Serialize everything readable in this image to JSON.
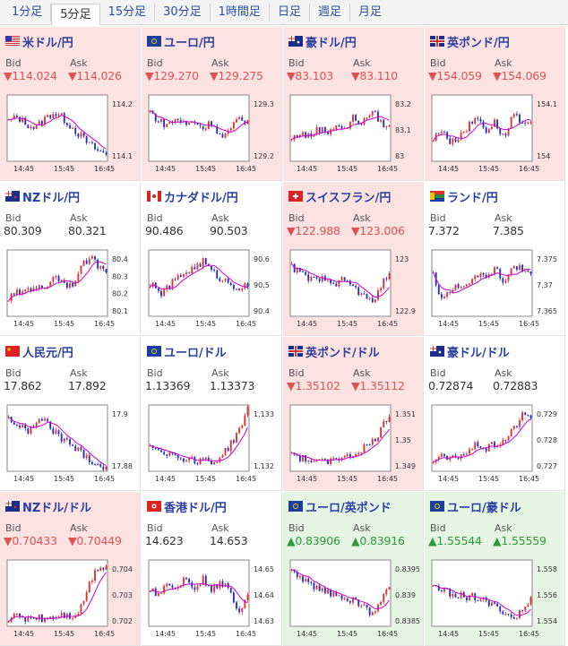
{
  "tabs": [
    {
      "label": "1分足",
      "active": false
    },
    {
      "label": "5分足",
      "active": true
    },
    {
      "label": "15分足",
      "active": false
    },
    {
      "label": "30分足",
      "active": false
    },
    {
      "label": "1時間足",
      "active": false
    },
    {
      "label": "日足",
      "active": false
    },
    {
      "label": "週足",
      "active": false
    },
    {
      "label": "月足",
      "active": false
    }
  ],
  "colors": {
    "down_bg": "#fde2e2",
    "up_bg": "#e6f5e3",
    "down_text": "#e05252",
    "up_text": "#2b9a3a",
    "bull_candle": "#e03030",
    "bear_candle": "#2030c0",
    "ma_line": "#cc00cc",
    "title": "#2a3fa0"
  },
  "labels": {
    "bid": "Bid",
    "ask": "Ask"
  },
  "pairs": [
    {
      "name": "米ドル/円",
      "flag": "us-flag-icon",
      "state": "down",
      "bid": "▼114.024",
      "ask": "▼114.026",
      "chart_data": {
        "type": "candlestick",
        "x_ticks": [
          "14:45",
          "15:45",
          "16:45"
        ],
        "y_ticks": [
          "114.2",
          "114.1"
        ],
        "ylim": [
          114.0,
          114.3
        ],
        "trend": [
          114.18,
          114.2,
          114.17,
          114.15,
          114.19,
          114.22,
          114.2,
          114.16,
          114.12,
          114.08,
          114.05,
          114.03
        ]
      }
    },
    {
      "name": "ユーロ/円",
      "flag": "eu-flag-icon",
      "state": "down",
      "bid": "▼129.270",
      "ask": "▼129.275",
      "chart_data": {
        "type": "candlestick",
        "x_ticks": [
          "14:45",
          "15:45",
          "16:45"
        ],
        "y_ticks": [
          "129.3",
          "129.2"
        ],
        "ylim": [
          129.15,
          129.35
        ],
        "trend": [
          129.3,
          129.27,
          129.26,
          129.28,
          129.26,
          129.27,
          129.25,
          129.27,
          129.22,
          129.24,
          129.28,
          129.27
        ]
      }
    },
    {
      "name": "豪ドル/円",
      "flag": "au-flag-icon",
      "state": "down",
      "bid": "▼83.103",
      "ask": "▼83.110",
      "chart_data": {
        "type": "candlestick",
        "x_ticks": [
          "14:45",
          "15:45",
          "16:45"
        ],
        "y_ticks": [
          "83.2",
          "83.1",
          "83"
        ],
        "ylim": [
          82.95,
          83.25
        ],
        "trend": [
          83.05,
          83.08,
          83.06,
          83.1,
          83.08,
          83.12,
          83.09,
          83.15,
          83.12,
          83.18,
          83.13,
          83.1
        ]
      }
    },
    {
      "name": "英ポンド/円",
      "flag": "gb-flag-icon",
      "state": "down",
      "bid": "▼154.059",
      "ask": "▼154.069",
      "chart_data": {
        "type": "candlestick",
        "x_ticks": [
          "14:45",
          "15:45",
          "16:45"
        ],
        "y_ticks": [
          "154.1",
          "154"
        ],
        "ylim": [
          153.9,
          154.2
        ],
        "trend": [
          154.0,
          154.05,
          153.98,
          154.02,
          154.06,
          154.1,
          154.04,
          154.08,
          154.0,
          154.12,
          154.06,
          154.06
        ]
      }
    },
    {
      "name": "NZドル/円",
      "flag": "nz-flag-icon",
      "state": "flat",
      "bid": "80.309",
      "ask": "80.321",
      "chart_data": {
        "type": "candlestick",
        "x_ticks": [
          "14:45",
          "15:45",
          "16:45"
        ],
        "y_ticks": [
          "80.4",
          "80.3",
          "80.2",
          "80.1"
        ],
        "ylim": [
          80.05,
          80.42
        ],
        "trend": [
          80.15,
          80.18,
          80.2,
          80.22,
          80.19,
          80.28,
          80.25,
          80.22,
          80.3,
          80.38,
          80.34,
          80.31
        ]
      }
    },
    {
      "name": "カナダドル/円",
      "flag": "ca-flag-icon",
      "state": "flat",
      "bid": "90.486",
      "ask": "90.503",
      "chart_data": {
        "type": "candlestick",
        "x_ticks": [
          "14:45",
          "15:45",
          "16:45"
        ],
        "y_ticks": [
          "90.6",
          "90.5",
          "90.4"
        ],
        "ylim": [
          90.35,
          90.65
        ],
        "trend": [
          90.5,
          90.45,
          90.48,
          90.52,
          90.55,
          90.57,
          90.6,
          90.55,
          90.52,
          90.5,
          90.48,
          90.49
        ]
      }
    },
    {
      "name": "スイスフラン/円",
      "flag": "ch-flag-icon",
      "state": "down",
      "bid": "▼122.988",
      "ask": "▼123.006",
      "chart_data": {
        "type": "candlestick",
        "x_ticks": [
          "14:45",
          "15:45",
          "16:45"
        ],
        "y_ticks": [
          "123",
          "122.9"
        ],
        "ylim": [
          122.85,
          123.08
        ],
        "trend": [
          123.02,
          123.0,
          122.98,
          122.97,
          122.99,
          122.96,
          122.98,
          122.95,
          122.92,
          122.9,
          122.95,
          123.0
        ]
      }
    },
    {
      "name": "ランド/円",
      "flag": "za-flag-icon",
      "state": "flat",
      "bid": "7.372",
      "ask": "7.385",
      "chart_data": {
        "type": "candlestick",
        "x_ticks": [
          "14:45",
          "15:45",
          "16:45"
        ],
        "y_ticks": [
          "7.375",
          "7.37",
          "7.365"
        ],
        "ylim": [
          7.362,
          7.378
        ],
        "trend": [
          7.372,
          7.366,
          7.368,
          7.37,
          7.369,
          7.372,
          7.371,
          7.374,
          7.37,
          7.375,
          7.373,
          7.372
        ]
      }
    },
    {
      "name": "人民元/円",
      "flag": "cn-flag-icon",
      "state": "flat",
      "bid": "17.862",
      "ask": "17.892",
      "chart_data": {
        "type": "candlestick",
        "x_ticks": [
          "14:45",
          "15:45",
          "16:45"
        ],
        "y_ticks": [
          "17.9",
          "17.88"
        ],
        "ylim": [
          17.86,
          17.91
        ],
        "trend": [
          17.9,
          17.895,
          17.89,
          17.895,
          17.9,
          17.89,
          17.885,
          17.88,
          17.875,
          17.87,
          17.865,
          17.862
        ]
      }
    },
    {
      "name": "ユーロ/ドル",
      "flag": "eu-flag-icon",
      "state": "flat",
      "bid": "1.13369",
      "ask": "1.13373",
      "chart_data": {
        "type": "candlestick",
        "x_ticks": [
          "14:45",
          "15:45",
          "16:45"
        ],
        "y_ticks": [
          "1.133",
          "1.132"
        ],
        "ylim": [
          1.1312,
          1.1338
        ],
        "trend": [
          1.1322,
          1.1321,
          1.1319,
          1.1318,
          1.1317,
          1.1316,
          1.1317,
          1.1315,
          1.1318,
          1.1322,
          1.1328,
          1.1336
        ]
      }
    },
    {
      "name": "英ポンド/ドル",
      "flag": "gb-flag-icon",
      "state": "down",
      "bid": "▼1.35102",
      "ask": "▼1.35112",
      "chart_data": {
        "type": "candlestick",
        "x_ticks": [
          "14:45",
          "15:45",
          "16:45"
        ],
        "y_ticks": [
          "1.351",
          "1.35",
          "1.349"
        ],
        "ylim": [
          1.3483,
          1.3514
        ],
        "trend": [
          1.3492,
          1.3489,
          1.3488,
          1.3487,
          1.3488,
          1.349,
          1.3489,
          1.3491,
          1.3494,
          1.3496,
          1.3502,
          1.351
        ]
      }
    },
    {
      "name": "豪ドル/ドル",
      "flag": "au-flag-icon",
      "state": "flat",
      "bid": "0.72874",
      "ask": "0.72883",
      "chart_data": {
        "type": "candlestick",
        "x_ticks": [
          "14:45",
          "15:45",
          "16:45"
        ],
        "y_ticks": [
          "0.729",
          "0.728",
          "0.727"
        ],
        "ylim": [
          0.7268,
          0.7292
        ],
        "trend": [
          0.7272,
          0.7273,
          0.7272,
          0.7274,
          0.7275,
          0.7278,
          0.7276,
          0.7278,
          0.7279,
          0.7283,
          0.7288,
          0.7288
        ]
      }
    },
    {
      "name": "NZドル/ドル",
      "flag": "nz-flag-icon",
      "state": "down",
      "bid": "▼0.70433",
      "ask": "▼0.70449",
      "chart_data": {
        "type": "candlestick",
        "x_ticks": [
          "14:45",
          "15:45",
          "16:45"
        ],
        "y_ticks": [
          "0.704",
          "0.703",
          "0.702"
        ],
        "ylim": [
          0.7018,
          0.7044
        ],
        "trend": [
          0.7021,
          0.7022,
          0.7021,
          0.7022,
          0.7021,
          0.7022,
          0.7023,
          0.7022,
          0.7024,
          0.7034,
          0.7041,
          0.7042
        ]
      }
    },
    {
      "name": "香港ドル/円",
      "flag": "hk-flag-icon",
      "state": "flat",
      "bid": "14.623",
      "ask": "14.653",
      "chart_data": {
        "type": "candlestick",
        "x_ticks": [
          "14:45",
          "15:45",
          "16:45"
        ],
        "y_ticks": [
          "14.65",
          "14.64",
          "14.63"
        ],
        "ylim": [
          14.622,
          14.656
        ],
        "trend": [
          14.642,
          14.638,
          14.645,
          14.64,
          14.648,
          14.642,
          14.646,
          14.641,
          14.644,
          14.64,
          14.63,
          14.638
        ]
      }
    },
    {
      "name": "ユーロ/英ポンド",
      "flag": "eu-flag-icon",
      "state": "up",
      "bid": "▲0.83906",
      "ask": "▲0.83916",
      "chart_data": {
        "type": "candlestick",
        "x_ticks": [
          "14:45",
          "15:45",
          "16:45"
        ],
        "y_ticks": [
          "0.8395",
          "0.839",
          "0.8385"
        ],
        "ylim": [
          0.8382,
          0.8398
        ],
        "trend": [
          0.8395,
          0.8394,
          0.8392,
          0.8391,
          0.839,
          0.839,
          0.8389,
          0.8388,
          0.8387,
          0.8385,
          0.8388,
          0.8391
        ]
      }
    },
    {
      "name": "ユーロ/豪ドル",
      "flag": "eu-flag-icon",
      "state": "up",
      "bid": "▲1.55544",
      "ask": "▲1.55559",
      "chart_data": {
        "type": "candlestick",
        "x_ticks": [
          "14:45",
          "15:45",
          "16:45"
        ],
        "y_ticks": [
          "1.558",
          "1.556",
          "1.554"
        ],
        "ylim": [
          1.5532,
          1.5588
        ],
        "trend": [
          1.5565,
          1.5562,
          1.556,
          1.5558,
          1.5557,
          1.5556,
          1.5552,
          1.5548,
          1.5545,
          1.5538,
          1.5545,
          1.5554
        ]
      }
    }
  ]
}
